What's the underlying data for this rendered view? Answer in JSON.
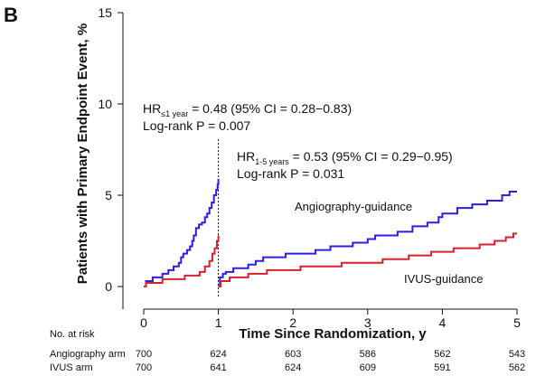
{
  "panel_label": "B",
  "chart_data": {
    "type": "line",
    "xlabel": "Time Since Randomization, y",
    "ylabel": "Patients with Primary Endpoint Event, %",
    "xlim": [
      0,
      5
    ],
    "ylim": [
      0,
      15
    ],
    "xticks": [
      "0",
      "1",
      "2",
      "3",
      "4",
      "5"
    ],
    "yticks": [
      "0",
      "5",
      "10",
      "15"
    ],
    "landmark_x": 1,
    "series": [
      {
        "name": "Angiography-guidance",
        "color": "#2d1fe0",
        "segments": [
          [
            [
              0,
              0
            ],
            [
              0.03,
              0.3
            ],
            [
              0.1,
              0.3
            ],
            [
              0.12,
              0.5
            ],
            [
              0.22,
              0.5
            ],
            [
              0.25,
              0.7
            ],
            [
              0.3,
              0.7
            ],
            [
              0.33,
              0.9
            ],
            [
              0.38,
              0.9
            ],
            [
              0.4,
              1.1
            ],
            [
              0.44,
              1.1
            ],
            [
              0.47,
              1.3
            ],
            [
              0.5,
              1.6
            ],
            [
              0.53,
              1.8
            ],
            [
              0.58,
              2.0
            ],
            [
              0.62,
              2.2
            ],
            [
              0.65,
              2.5
            ],
            [
              0.67,
              2.8
            ],
            [
              0.7,
              3.2
            ],
            [
              0.74,
              3.4
            ],
            [
              0.78,
              3.5
            ],
            [
              0.82,
              3.8
            ],
            [
              0.85,
              4.0
            ],
            [
              0.88,
              4.3
            ],
            [
              0.91,
              4.6
            ],
            [
              0.94,
              5.0
            ],
            [
              0.97,
              5.3
            ],
            [
              0.99,
              5.6
            ],
            [
              1.0,
              5.9
            ]
          ],
          [
            [
              1.0,
              0
            ],
            [
              1.02,
              0.5
            ],
            [
              1.06,
              0.7
            ],
            [
              1.1,
              0.8
            ],
            [
              1.2,
              1.0
            ],
            [
              1.4,
              1.2
            ],
            [
              1.5,
              1.4
            ],
            [
              1.6,
              1.6
            ],
            [
              1.9,
              1.8
            ],
            [
              2.3,
              2.0
            ],
            [
              2.5,
              2.2
            ],
            [
              2.8,
              2.4
            ],
            [
              3.0,
              2.6
            ],
            [
              3.1,
              2.8
            ],
            [
              3.4,
              3.0
            ],
            [
              3.6,
              3.3
            ],
            [
              3.8,
              3.5
            ],
            [
              3.95,
              3.8
            ],
            [
              4.0,
              4.0
            ],
            [
              4.2,
              4.3
            ],
            [
              4.4,
              4.5
            ],
            [
              4.6,
              4.7
            ],
            [
              4.8,
              5.0
            ],
            [
              4.9,
              5.2
            ],
            [
              5.0,
              5.2
            ]
          ]
        ]
      },
      {
        "name": "IVUS-guidance",
        "color": "#d4232d",
        "segments": [
          [
            [
              0,
              0
            ],
            [
              0.03,
              0.2
            ],
            [
              0.2,
              0.2
            ],
            [
              0.25,
              0.4
            ],
            [
              0.5,
              0.4
            ],
            [
              0.55,
              0.6
            ],
            [
              0.7,
              0.6
            ],
            [
              0.75,
              0.8
            ],
            [
              0.82,
              1.1
            ],
            [
              0.88,
              1.4
            ],
            [
              0.92,
              1.8
            ],
            [
              0.95,
              2.1
            ],
            [
              0.98,
              2.5
            ],
            [
              1.0,
              2.8
            ]
          ],
          [
            [
              1.0,
              0
            ],
            [
              1.03,
              0.3
            ],
            [
              1.1,
              0.3
            ],
            [
              1.15,
              0.5
            ],
            [
              1.35,
              0.5
            ],
            [
              1.4,
              0.7
            ],
            [
              1.6,
              0.7
            ],
            [
              1.65,
              0.9
            ],
            [
              2.05,
              0.9
            ],
            [
              2.1,
              1.1
            ],
            [
              2.6,
              1.1
            ],
            [
              2.65,
              1.3
            ],
            [
              3.15,
              1.3
            ],
            [
              3.2,
              1.5
            ],
            [
              3.5,
              1.5
            ],
            [
              3.55,
              1.7
            ],
            [
              3.8,
              1.7
            ],
            [
              3.85,
              1.9
            ],
            [
              4.1,
              1.9
            ],
            [
              4.15,
              2.1
            ],
            [
              4.4,
              2.1
            ],
            [
              4.5,
              2.3
            ],
            [
              4.7,
              2.5
            ],
            [
              4.85,
              2.7
            ],
            [
              4.95,
              2.9
            ],
            [
              5.0,
              2.9
            ]
          ]
        ]
      }
    ],
    "annotations": {
      "hr1_label": "HR",
      "hr1_sub": "≤1 year",
      "hr1_value": " = 0.48 (95% CI = 0.28−0.83)",
      "p1": "Log-rank P = 0.007",
      "hr2_label": "HR",
      "hr2_sub": "1-5 years",
      "hr2_value": " = 0.53 (95% CI = 0.29−0.95)",
      "p2": "Log-rank P = 0.031",
      "angio_label": "Angiography-guidance",
      "ivus_label": "IVUS-guidance"
    },
    "risk_table": {
      "header": "No. at risk",
      "rows": [
        {
          "label": "Angiography arm",
          "values": [
            "700",
            "624",
            "603",
            "586",
            "562",
            "543"
          ]
        },
        {
          "label": "IVUS arm",
          "values": [
            "700",
            "641",
            "624",
            "609",
            "591",
            "562"
          ]
        }
      ]
    }
  }
}
